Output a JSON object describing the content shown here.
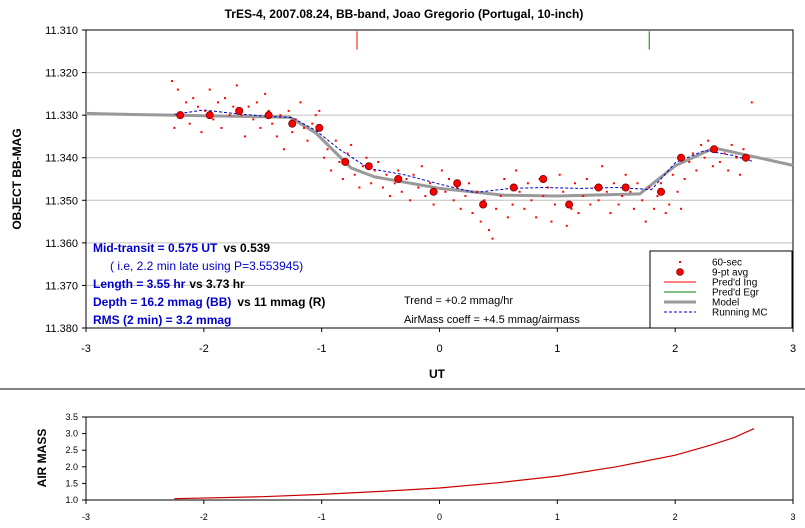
{
  "title": "TrES-4, 2007.08.24, BB-band, Joao Gregorio (Portugal, 10-inch)",
  "chart_data": [
    {
      "type": "scatter",
      "title": "TrES-4, 2007.08.24, BB-band, Joao Gregorio (Portugal, 10-inch)",
      "xlabel": "UT",
      "ylabel": "OBJECT BB-MAG",
      "xlim": [
        -3,
        3
      ],
      "ylim": [
        11.38,
        11.31
      ],
      "y_inverted": true,
      "x_ticks": [
        "-3",
        "-2",
        "-1",
        "0",
        "1",
        "2",
        "3"
      ],
      "y_ticks": [
        "11.310",
        "11.320",
        "11.330",
        "11.340",
        "11.350",
        "11.360",
        "11.370",
        "11.380"
      ],
      "legend": [
        "60-sec",
        "9-pt avg",
        "Pred'd Ing",
        "Pred'd Egr",
        "Model",
        "Running MC"
      ],
      "legend_position": "bottom-right",
      "colors": {
        "raw": "#ff0000",
        "avg": "#ff0000",
        "ingress": "#ff0000",
        "egress": "#008000",
        "model": "#999999",
        "running": "#0000cc"
      },
      "series": [
        {
          "name": "60-sec",
          "points": [
            [
              -2.27,
              11.322
            ],
            [
              -2.25,
              11.333
            ],
            [
              -2.22,
              11.324
            ],
            [
              -2.18,
              11.33
            ],
            [
              -2.15,
              11.327
            ],
            [
              -2.12,
              11.332
            ],
            [
              -2.09,
              11.326
            ],
            [
              -2.05,
              11.328
            ],
            [
              -2.02,
              11.334
            ],
            [
              -1.99,
              11.329
            ],
            [
              -1.95,
              11.324
            ],
            [
              -1.92,
              11.331
            ],
            [
              -1.88,
              11.327
            ],
            [
              -1.85,
              11.333
            ],
            [
              -1.82,
              11.326
            ],
            [
              -1.78,
              11.33
            ],
            [
              -1.75,
              11.328
            ],
            [
              -1.72,
              11.323
            ],
            [
              -1.68,
              11.33
            ],
            [
              -1.65,
              11.335
            ],
            [
              -1.62,
              11.328
            ],
            [
              -1.58,
              11.331
            ],
            [
              -1.55,
              11.327
            ],
            [
              -1.52,
              11.333
            ],
            [
              -1.48,
              11.325
            ],
            [
              -1.45,
              11.329
            ],
            [
              -1.42,
              11.332
            ],
            [
              -1.38,
              11.335
            ],
            [
              -1.35,
              11.33
            ],
            [
              -1.32,
              11.338
            ],
            [
              -1.28,
              11.329
            ],
            [
              -1.25,
              11.334
            ],
            [
              -1.22,
              11.331
            ],
            [
              -1.18,
              11.327
            ],
            [
              -1.15,
              11.333
            ],
            [
              -1.12,
              11.336
            ],
            [
              -1.08,
              11.332
            ],
            [
              -1.05,
              11.33
            ],
            [
              -1.02,
              11.329
            ],
            [
              -0.98,
              11.34
            ],
            [
              -0.95,
              11.338
            ],
            [
              -0.92,
              11.343
            ],
            [
              -0.88,
              11.336
            ],
            [
              -0.85,
              11.341
            ],
            [
              -0.82,
              11.345
            ],
            [
              -0.78,
              11.339
            ],
            [
              -0.75,
              11.337
            ],
            [
              -0.72,
              11.344
            ],
            [
              -0.68,
              11.347
            ],
            [
              -0.65,
              11.342
            ],
            [
              -0.62,
              11.34
            ],
            [
              -0.58,
              11.346
            ],
            [
              -0.55,
              11.343
            ],
            [
              -0.52,
              11.341
            ],
            [
              -0.48,
              11.347
            ],
            [
              -0.45,
              11.344
            ],
            [
              -0.42,
              11.349
            ],
            [
              -0.38,
              11.346
            ],
            [
              -0.35,
              11.343
            ],
            [
              -0.32,
              11.348
            ],
            [
              -0.28,
              11.345
            ],
            [
              -0.25,
              11.35
            ],
            [
              -0.22,
              11.344
            ],
            [
              -0.18,
              11.347
            ],
            [
              -0.15,
              11.342
            ],
            [
              -0.12,
              11.349
            ],
            [
              -0.08,
              11.346
            ],
            [
              -0.05,
              11.351
            ],
            [
              0.02,
              11.343
            ],
            [
              0.05,
              11.348
            ],
            [
              0.08,
              11.345
            ],
            [
              0.12,
              11.35
            ],
            [
              0.15,
              11.347
            ],
            [
              0.18,
              11.352
            ],
            [
              0.22,
              11.349
            ],
            [
              0.25,
              11.346
            ],
            [
              0.28,
              11.353
            ],
            [
              0.32,
              11.348
            ],
            [
              0.35,
              11.355
            ],
            [
              0.38,
              11.35
            ],
            [
              0.42,
              11.357
            ],
            [
              0.45,
              11.359
            ],
            [
              0.48,
              11.352
            ],
            [
              0.52,
              11.349
            ],
            [
              0.55,
              11.345
            ],
            [
              0.58,
              11.354
            ],
            [
              0.62,
              11.351
            ],
            [
              0.65,
              11.343
            ],
            [
              0.68,
              11.348
            ],
            [
              0.72,
              11.352
            ],
            [
              0.75,
              11.346
            ],
            [
              0.78,
              11.35
            ],
            [
              0.82,
              11.354
            ],
            [
              0.85,
              11.345
            ],
            [
              0.88,
              11.349
            ],
            [
              0.92,
              11.347
            ],
            [
              0.95,
              11.355
            ],
            [
              0.98,
              11.351
            ],
            [
              1.02,
              11.344
            ],
            [
              1.05,
              11.348
            ],
            [
              1.08,
              11.356
            ],
            [
              1.12,
              11.352
            ],
            [
              1.15,
              11.346
            ],
            [
              1.18,
              11.353
            ],
            [
              1.22,
              11.349
            ],
            [
              1.25,
              11.345
            ],
            [
              1.28,
              11.351
            ],
            [
              1.32,
              11.347
            ],
            [
              1.35,
              11.35
            ],
            [
              1.38,
              11.342
            ],
            [
              1.42,
              11.348
            ],
            [
              1.45,
              11.353
            ],
            [
              1.48,
              11.346
            ],
            [
              1.52,
              11.351
            ],
            [
              1.55,
              11.349
            ],
            [
              1.58,
              11.344
            ],
            [
              1.62,
              11.348
            ],
            [
              1.65,
              11.352
            ],
            [
              1.68,
              11.346
            ],
            [
              1.72,
              11.35
            ],
            [
              1.75,
              11.355
            ],
            [
              1.78,
              11.347
            ],
            [
              1.82,
              11.352
            ],
            [
              1.85,
              11.349
            ],
            [
              1.88,
              11.346
            ],
            [
              1.92,
              11.353
            ],
            [
              1.95,
              11.351
            ],
            [
              1.98,
              11.344
            ],
            [
              2.02,
              11.348
            ],
            [
              2.05,
              11.352
            ],
            [
              2.08,
              11.345
            ],
            [
              2.12,
              11.341
            ],
            [
              2.15,
              11.339
            ],
            [
              2.18,
              11.343
            ],
            [
              2.22,
              11.337
            ],
            [
              2.25,
              11.34
            ],
            [
              2.28,
              11.336
            ],
            [
              2.32,
              11.342
            ],
            [
              2.35,
              11.338
            ],
            [
              2.38,
              11.341
            ],
            [
              2.42,
              11.339
            ],
            [
              2.45,
              11.343
            ],
            [
              2.48,
              11.337
            ],
            [
              2.52,
              11.34
            ],
            [
              2.55,
              11.344
            ],
            [
              2.58,
              11.338
            ],
            [
              2.65,
              11.327
            ]
          ]
        },
        {
          "name": "9-pt avg",
          "points": [
            [
              -2.2,
              11.33
            ],
            [
              -1.95,
              11.33
            ],
            [
              -1.7,
              11.329
            ],
            [
              -1.45,
              11.33
            ],
            [
              -1.25,
              11.332
            ],
            [
              -1.02,
              11.333
            ],
            [
              -0.8,
              11.341
            ],
            [
              -0.6,
              11.342
            ],
            [
              -0.35,
              11.345
            ],
            [
              -0.05,
              11.348
            ],
            [
              0.15,
              11.346
            ],
            [
              0.37,
              11.351
            ],
            [
              0.63,
              11.347
            ],
            [
              0.88,
              11.345
            ],
            [
              1.1,
              11.351
            ],
            [
              1.35,
              11.347
            ],
            [
              1.58,
              11.347
            ],
            [
              1.88,
              11.348
            ],
            [
              2.05,
              11.34
            ],
            [
              2.33,
              11.338
            ],
            [
              2.6,
              11.34
            ]
          ]
        },
        {
          "name": "Pred'd Ing",
          "x": -0.7,
          "y_range": [
            11.3103,
            11.3146
          ]
        },
        {
          "name": "Pred'd Egr",
          "x": 1.78,
          "y_range": [
            11.3103,
            11.3146
          ]
        },
        {
          "name": "Model",
          "points": [
            [
              -3.0,
              11.3296
            ],
            [
              -2.7,
              11.3298
            ],
            [
              -1.27,
              11.3305
            ],
            [
              -1.05,
              11.3342
            ],
            [
              -0.75,
              11.3424
            ],
            [
              -0.55,
              11.3445
            ],
            [
              0.0,
              11.3472
            ],
            [
              0.55,
              11.3488
            ],
            [
              1.0,
              11.349
            ],
            [
              1.7,
              11.3485
            ],
            [
              2.0,
              11.3419
            ],
            [
              2.33,
              11.3377
            ],
            [
              3.0,
              11.3418
            ]
          ]
        },
        {
          "name": "Running MC",
          "points": [
            [
              -2.25,
              11.3298
            ],
            [
              -2.0,
              11.3288
            ],
            [
              -1.75,
              11.3296
            ],
            [
              -1.5,
              11.3302
            ],
            [
              -1.25,
              11.3306
            ],
            [
              -1.05,
              11.3336
            ],
            [
              -0.85,
              11.338
            ],
            [
              -0.6,
              11.3425
            ],
            [
              -0.3,
              11.344
            ],
            [
              0.0,
              11.3462
            ],
            [
              0.3,
              11.3482
            ],
            [
              0.6,
              11.3472
            ],
            [
              0.9,
              11.347
            ],
            [
              1.2,
              11.3472
            ],
            [
              1.5,
              11.347
            ],
            [
              1.8,
              11.3475
            ],
            [
              2.0,
              11.3412
            ],
            [
              2.25,
              11.3383
            ],
            [
              2.5,
              11.3395
            ],
            [
              2.65,
              11.3408
            ]
          ]
        }
      ],
      "annotations": {
        "mid_transit": "Mid-transit = 0.575 UT",
        "mid_transit_vs": "vs 0.539",
        "late_note": "( i.e,  2.2 min late using P=3.553945)",
        "length": "Length = 3.55 hr",
        "length_vs": "vs 3.73 hr",
        "depth": "Depth = 16.2 mmag (BB)",
        "depth_vs": "vs 11 mmag (R)",
        "rms": "RMS (2 min) = 3.2 mmag",
        "trend": "Trend = +0.2 mmag/hr",
        "airmass_coeff": "AirMass coeff = +4.5 mmag/airmass"
      }
    },
    {
      "type": "line",
      "ylabel": "AIR MASS",
      "xlim": [
        -3,
        3
      ],
      "ylim": [
        1.0,
        3.5
      ],
      "x_ticks": [
        "-3",
        "-2",
        "-1",
        "0",
        "1",
        "2",
        "3"
      ],
      "y_ticks": [
        "1.0",
        "1.5",
        "2.0",
        "2.5",
        "3.0",
        "3.5"
      ],
      "color": "#cc0000",
      "points": [
        [
          -2.25,
          1.04
        ],
        [
          -1.5,
          1.1
        ],
        [
          -1.0,
          1.17
        ],
        [
          -0.5,
          1.26
        ],
        [
          0.0,
          1.36
        ],
        [
          0.5,
          1.52
        ],
        [
          1.0,
          1.72
        ],
        [
          1.5,
          2.0
        ],
        [
          2.0,
          2.35
        ],
        [
          2.3,
          2.65
        ],
        [
          2.5,
          2.88
        ],
        [
          2.67,
          3.15
        ]
      ]
    }
  ]
}
